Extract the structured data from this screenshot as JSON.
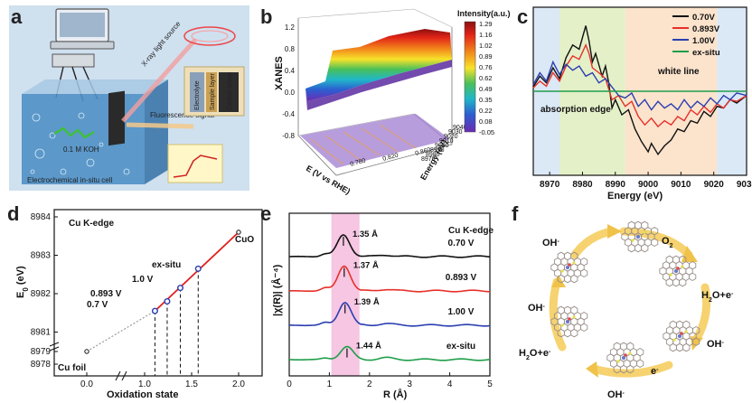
{
  "panel_labels": [
    "a",
    "b",
    "c",
    "d",
    "e",
    "f"
  ],
  "colors": {
    "black": "#111111",
    "red": "#e8302a",
    "blue": "#2b3fb0",
    "green": "#1f9e4a",
    "redline": "#e02020",
    "pink": "#f6c6e2",
    "greenband": "#e4f0c8",
    "orangeband": "#fbe3cc",
    "blueband": "#dbe8f6",
    "arrow": "#f6cf61"
  },
  "panel_a": {
    "text": {
      "xray": "X-ray light source",
      "fluo": "Fluorescence signal",
      "koh": "0.1 M KOH",
      "cell": "Electrochemical in-situ cell",
      "sheet1": "Carbon sheet",
      "sheet2": "Sample layer",
      "sheet3": "Electrolyte"
    }
  },
  "chart_data": [
    {
      "id": "b",
      "type": "area",
      "title": "",
      "zlabel": "XANES",
      "xlabel": "E (V vs RHE)",
      "ylabel": "Energy (eV)",
      "colorbar_title": "Intensity(a.u.)",
      "colorbar_ticks": [
        "1.29",
        "1.16",
        "1.02",
        "0.89",
        "0.76",
        "0.62",
        "0.49",
        "0.35",
        "0.22",
        "0.08",
        "-0.05"
      ],
      "z_ticks": [
        "1.2",
        "0.8",
        "0.4",
        "0.0",
        "-0.4",
        "-0.8"
      ],
      "x_ticks": [
        "0.780",
        "0.820",
        "0.860"
      ],
      "y_ticks": [
        "8970",
        "8980",
        "8990",
        "9000",
        "9010",
        "9020",
        "9030",
        "9040"
      ]
    },
    {
      "id": "c",
      "type": "line",
      "xlabel": "Energy (eV)",
      "ylabel": "",
      "xlim": [
        8965,
        9030
      ],
      "ylim": [
        -1,
        1
      ],
      "x_ticks": [
        8970,
        8980,
        8990,
        9000,
        9010,
        9020,
        9030
      ],
      "annotations": [
        "white line",
        "absorption edge"
      ],
      "bands": [
        {
          "name": "edge-band",
          "from": 8973,
          "to": 8993
        },
        {
          "name": "white-band",
          "from": 8993,
          "to": 9021
        }
      ],
      "series": [
        {
          "name": "0.70V",
          "color": "#111111",
          "points": [
            [
              8965,
              0.05
            ],
            [
              8967,
              0.18
            ],
            [
              8969,
              0.1
            ],
            [
              8971,
              0.28
            ],
            [
              8973,
              0.15
            ],
            [
              8975,
              0.4
            ],
            [
              8977,
              0.55
            ],
            [
              8979,
              0.5
            ],
            [
              8981,
              0.78
            ],
            [
              8982,
              0.6
            ],
            [
              8983,
              0.35
            ],
            [
              8984,
              0.45
            ],
            [
              8986,
              0.18
            ],
            [
              8987,
              0.3
            ],
            [
              8988,
              0.1
            ],
            [
              8989,
              -0.2
            ],
            [
              8990,
              -0.1
            ],
            [
              8992,
              -0.28
            ],
            [
              8994,
              -0.22
            ],
            [
              8996,
              -0.45
            ],
            [
              8998,
              -0.6
            ],
            [
              9000,
              -0.72
            ],
            [
              9001,
              -0.62
            ],
            [
              9003,
              -0.75
            ],
            [
              9005,
              -0.65
            ],
            [
              9007,
              -0.58
            ],
            [
              9009,
              -0.45
            ],
            [
              9011,
              -0.48
            ],
            [
              9013,
              -0.35
            ],
            [
              9015,
              -0.38
            ],
            [
              9017,
              -0.24
            ],
            [
              9019,
              -0.3
            ],
            [
              9021,
              -0.18
            ],
            [
              9023,
              -0.2
            ],
            [
              9025,
              -0.1
            ],
            [
              9027,
              -0.14
            ],
            [
              9030,
              -0.05
            ]
          ]
        },
        {
          "name": "0.893V",
          "color": "#e8302a",
          "points": [
            [
              8965,
              0.04
            ],
            [
              8967,
              0.12
            ],
            [
              8969,
              0.06
            ],
            [
              8971,
              0.22
            ],
            [
              8973,
              0.12
            ],
            [
              8975,
              0.3
            ],
            [
              8977,
              0.42
            ],
            [
              8979,
              0.38
            ],
            [
              8981,
              0.55
            ],
            [
              8982,
              0.45
            ],
            [
              8983,
              0.28
            ],
            [
              8985,
              0.22
            ],
            [
              8987,
              0.15
            ],
            [
              8989,
              -0.1
            ],
            [
              8991,
              -0.05
            ],
            [
              8993,
              -0.18
            ],
            [
              8995,
              -0.12
            ],
            [
              8997,
              -0.3
            ],
            [
              8999,
              -0.4
            ],
            [
              9001,
              -0.32
            ],
            [
              9003,
              -0.42
            ],
            [
              9005,
              -0.35
            ],
            [
              9007,
              -0.4
            ],
            [
              9009,
              -0.3
            ],
            [
              9011,
              -0.35
            ],
            [
              9013,
              -0.22
            ],
            [
              9015,
              -0.28
            ],
            [
              9017,
              -0.18
            ],
            [
              9019,
              -0.25
            ],
            [
              9021,
              -0.15
            ],
            [
              9023,
              -0.2
            ],
            [
              9025,
              -0.1
            ],
            [
              9027,
              -0.12
            ],
            [
              9030,
              -0.05
            ]
          ]
        },
        {
          "name": "1.00V",
          "color": "#2b3fb0",
          "points": [
            [
              8965,
              0.08
            ],
            [
              8967,
              0.22
            ],
            [
              8969,
              0.12
            ],
            [
              8971,
              0.35
            ],
            [
              8973,
              0.2
            ],
            [
              8975,
              0.32
            ],
            [
              8977,
              0.25
            ],
            [
              8979,
              0.3
            ],
            [
              8981,
              0.18
            ],
            [
              8983,
              0.22
            ],
            [
              8985,
              0.1
            ],
            [
              8987,
              0.15
            ],
            [
              8989,
              0.05
            ],
            [
              8991,
              -0.05
            ],
            [
              8993,
              -0.08
            ],
            [
              8995,
              -0.02
            ],
            [
              8997,
              -0.18
            ],
            [
              8999,
              -0.1
            ],
            [
              9001,
              -0.22
            ],
            [
              9003,
              -0.12
            ],
            [
              9005,
              -0.2
            ],
            [
              9007,
              -0.15
            ],
            [
              9009,
              -0.22
            ],
            [
              9011,
              -0.1
            ],
            [
              9013,
              -0.2
            ],
            [
              9015,
              -0.12
            ],
            [
              9017,
              -0.18
            ],
            [
              9019,
              -0.08
            ],
            [
              9021,
              -0.15
            ],
            [
              9023,
              -0.05
            ],
            [
              9025,
              -0.1
            ],
            [
              9027,
              -0.02
            ],
            [
              9030,
              -0.05
            ]
          ]
        },
        {
          "name": "ex-situ",
          "color": "#1f9e4a",
          "points": [
            [
              8965,
              0.0
            ],
            [
              9030,
              0.0
            ]
          ]
        }
      ]
    },
    {
      "id": "d",
      "type": "scatter",
      "xlabel": "Oxidation state",
      "ylabel": "E0 (eV)",
      "title": "Cu K-edge",
      "x_ticks": [
        "0.0",
        "1.0",
        "1.5",
        "2.0"
      ],
      "y_ticks": [
        "8978",
        "8979",
        "8981",
        "8982",
        "8983",
        "8984"
      ],
      "points": [
        {
          "label": "Cu foil",
          "x": 0.0,
          "y": 8979.0,
          "kind": "reference"
        },
        {
          "label": "0.7 V",
          "x": 1.11,
          "y": 8981.55,
          "kind": "sample"
        },
        {
          "label": "0.893 V",
          "x": 1.24,
          "y": 8981.8,
          "kind": "sample"
        },
        {
          "label": "1.0 V",
          "x": 1.38,
          "y": 8982.15,
          "kind": "sample"
        },
        {
          "label": "ex-situ",
          "x": 1.57,
          "y": 8982.65,
          "kind": "sample"
        },
        {
          "label": "CuO",
          "x": 2.0,
          "y": 8983.6,
          "kind": "reference"
        }
      ]
    },
    {
      "id": "e",
      "type": "line",
      "xlabel": "R (Å)",
      "ylabel": "|χ(R)| (Å⁻⁴)",
      "title": "Cu K-edge",
      "xlim": [
        0,
        5
      ],
      "x_ticks": [
        "0",
        "1",
        "2",
        "3",
        "4",
        "5"
      ],
      "highlight": [
        1.05,
        1.75
      ],
      "series": [
        {
          "name": "0.70 V",
          "color": "#111111",
          "peak_label": "1.35 Å",
          "peak_r": 1.35,
          "offset": 3,
          "amp": 1.0
        },
        {
          "name": "0.893 V",
          "color": "#e8302a",
          "peak_label": "1.37 Å",
          "peak_r": 1.37,
          "offset": 2,
          "amp": 1.15
        },
        {
          "name": "1.00 V",
          "color": "#2b3fb0",
          "peak_label": "1.39 Å",
          "peak_r": 1.39,
          "offset": 1,
          "amp": 1.05
        },
        {
          "name": "ex-situ",
          "color": "#1f9e4a",
          "peak_label": "1.44 Å",
          "peak_r": 1.44,
          "offset": 0,
          "amp": 0.6
        }
      ]
    }
  ],
  "panel_f": {
    "labels": {
      "oh_top": "OH-",
      "o2": "O2",
      "h2o_e_right": "H2O+e-",
      "oh_right": "OH-",
      "e_bottom": "e-",
      "oh_bottom": "OH-",
      "h2o_e_left": "H2O+e-",
      "oh_left": "OH-"
    }
  }
}
